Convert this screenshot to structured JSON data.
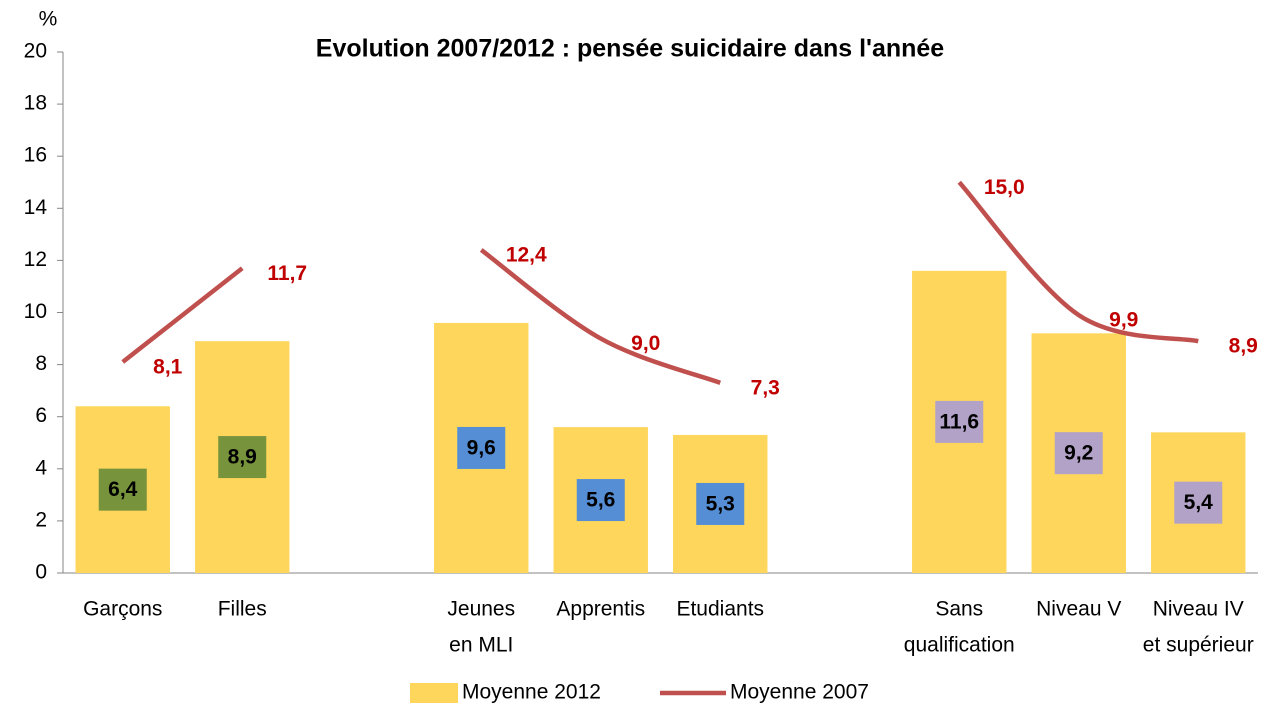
{
  "chart_data": {
    "type": "bar-line",
    "title": "Evolution 2007/2012 : pensée suicidaire dans l'année",
    "y_unit": "%",
    "categories": [
      [
        "Garçons"
      ],
      [
        "Filles"
      ],
      null,
      [
        "Jeunes",
        "en MLI"
      ],
      [
        "Apprentis"
      ],
      [
        "Etudiants"
      ],
      null,
      [
        "Sans",
        "qualification"
      ],
      [
        "Niveau V"
      ],
      [
        "Niveau IV",
        "et supérieur"
      ]
    ],
    "series": [
      {
        "name": "Moyenne 2012",
        "type": "bar",
        "color": "#fdd65b",
        "values": [
          6.4,
          8.9,
          null,
          9.6,
          5.6,
          5.3,
          null,
          11.6,
          9.2,
          5.4
        ],
        "value_labels": [
          "6,4",
          "8,9",
          null,
          "9,6",
          "5,6",
          "5,3",
          null,
          "11,6",
          "9,2",
          "5,4"
        ],
        "label_colors": [
          "#77933c",
          "#77933c",
          null,
          "#558ed5",
          "#558ed5",
          "#558ed5",
          null,
          "#b3a2c7",
          "#b3a2c7",
          "#b3a2c7"
        ]
      },
      {
        "name": "Moyenne 2007",
        "type": "line",
        "color": "#c0504d",
        "label_color": "#c00000",
        "values": [
          8.1,
          11.7,
          null,
          12.4,
          9.0,
          7.3,
          null,
          15.0,
          9.9,
          8.9
        ],
        "value_labels": [
          "8,1",
          "11,7",
          null,
          "12,4",
          "9,0",
          "7,3",
          null,
          "15,0",
          "9,9",
          "8,9"
        ]
      }
    ],
    "ylim": [
      0,
      20
    ],
    "yticks": [
      0,
      2,
      4,
      6,
      8,
      10,
      12,
      14,
      16,
      18,
      20
    ],
    "legend": "bottom"
  }
}
